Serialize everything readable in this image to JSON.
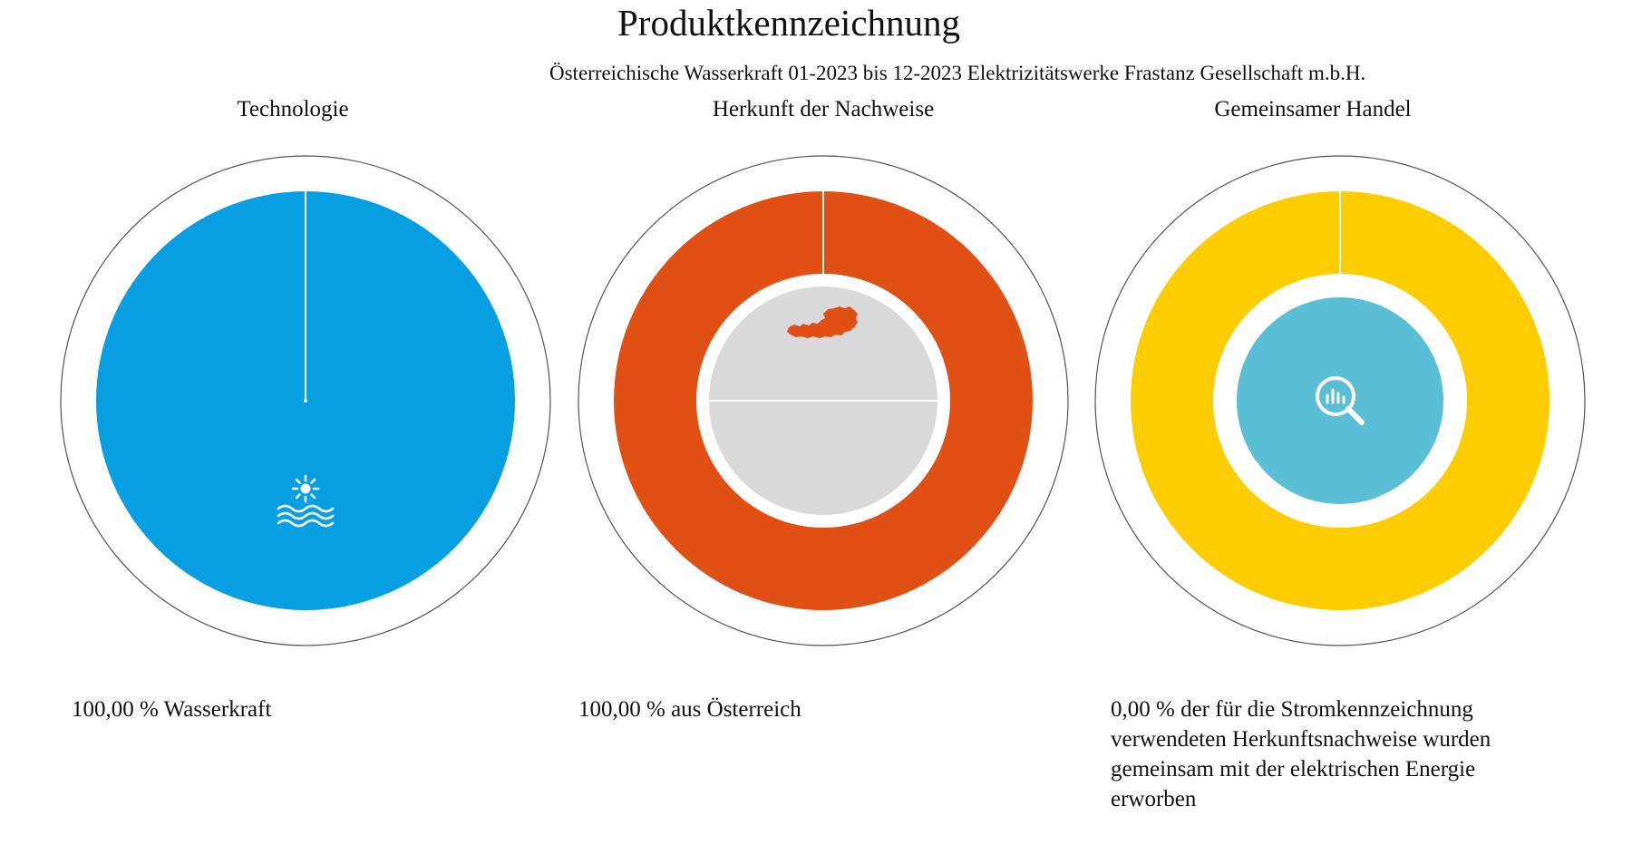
{
  "title": "Produktkennzeichnung",
  "subtitle": "Österreichische Wasserkraft 01-2023 bis 12-2023 Elektrizitätswerke Frastanz Gesellschaft m.b.H.",
  "colors": {
    "technology": "#079FE2",
    "origin": "#E04F14",
    "origin_inner": "#D9D9DB",
    "trade": "#FDCD00",
    "trade_inner": "#5ABFD6",
    "outline": "#555555"
  },
  "chart_data": [
    {
      "type": "pie",
      "title": "Technologie",
      "categories": [
        "Wasserkraft"
      ],
      "values": [
        100.0
      ],
      "icon": "sun-water-icon",
      "caption": "100,00 % Wasserkraft"
    },
    {
      "type": "pie",
      "title": "Herkunft der Nachweise",
      "categories": [
        "Österreich"
      ],
      "values": [
        100.0
      ],
      "icon": "austria-map-icon",
      "caption": "100,00 % aus Österreich"
    },
    {
      "type": "pie",
      "title": "Gemeinsamer Handel",
      "categories": [
        "gemeinsam erworben"
      ],
      "values": [
        0.0
      ],
      "icon": "magnifier-chart-icon",
      "caption": "0,00 % der für die Stromkennzeichnung verwendeten Herkunftsnachweise wurden gemeinsam mit der elektrischen Energie erworben"
    }
  ]
}
